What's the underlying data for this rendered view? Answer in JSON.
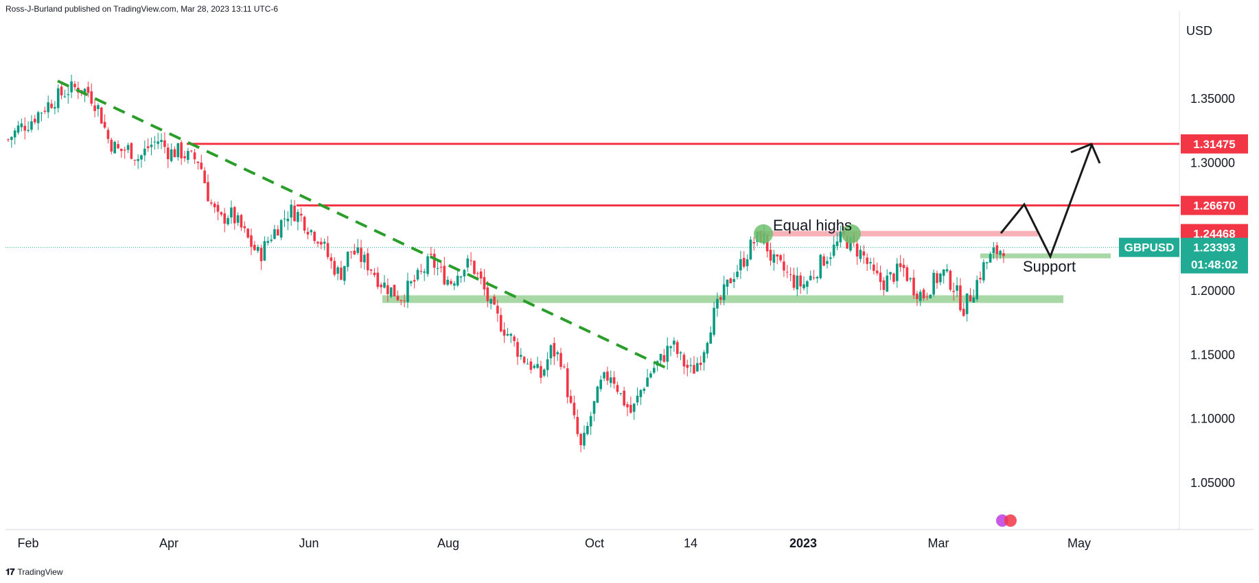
{
  "header": {
    "published": "Ross-J-Burland published on TradingView.com, Mar 28, 2023 13:11 UTC-6"
  },
  "footer": {
    "brand": "TradingView",
    "logo_glyph": "𝟏𝟕"
  },
  "colors": {
    "up": "#089981",
    "down": "#f23645",
    "resistance": "#f23645",
    "resistance_zone": "#f7a8ae",
    "support_zone": "#9fd49c",
    "trendline": "#2a9d2a",
    "arrow": "#1a1a1a",
    "current": "#22ab94"
  },
  "chart_data": {
    "type": "candlestick",
    "symbol": "GBPUSD",
    "currency": "USD",
    "ylim": [
      1.03,
      1.375
    ],
    "y_ticks": [
      "1.35000",
      "1.30000",
      "1.20000",
      "1.15000",
      "1.10000",
      "1.05000"
    ],
    "x_ticks": [
      "Feb",
      "Apr",
      "Jun",
      "Aug",
      "Oct",
      "14",
      "2023",
      "Mar",
      "May"
    ],
    "close_series": [
      1.318,
      1.327,
      1.331,
      1.339,
      1.346,
      1.352,
      1.357,
      1.359,
      1.355,
      1.342,
      1.317,
      1.309,
      1.311,
      1.303,
      1.313,
      1.318,
      1.308,
      1.309,
      1.304,
      1.302,
      1.271,
      1.254,
      1.261,
      1.251,
      1.238,
      1.227,
      1.242,
      1.252,
      1.263,
      1.259,
      1.248,
      1.241,
      1.223,
      1.212,
      1.232,
      1.226,
      1.219,
      1.207,
      1.201,
      1.195,
      1.204,
      1.212,
      1.224,
      1.214,
      1.207,
      1.217,
      1.222,
      1.207,
      1.187,
      1.174,
      1.163,
      1.149,
      1.142,
      1.133,
      1.154,
      1.147,
      1.107,
      1.075,
      1.104,
      1.128,
      1.136,
      1.117,
      1.104,
      1.124,
      1.138,
      1.147,
      1.159,
      1.145,
      1.136,
      1.151,
      1.178,
      1.195,
      1.212,
      1.222,
      1.237,
      1.244,
      1.223,
      1.217,
      1.208,
      1.204,
      1.212,
      1.224,
      1.232,
      1.242,
      1.235,
      1.228,
      1.212,
      1.206,
      1.212,
      1.218,
      1.203,
      1.196,
      1.207,
      1.214,
      1.204,
      1.186,
      1.201,
      1.219,
      1.229,
      1.234
    ],
    "levels": [
      {
        "label": "1.31475",
        "value": 1.31475
      },
      {
        "label": "1.26670",
        "value": 1.2667
      },
      {
        "label": "1.24468",
        "value": 1.24468
      }
    ],
    "current": {
      "symbol": "GBPUSD",
      "price": "1.23393",
      "countdown": "01:48:02",
      "value": 1.23393
    },
    "annotations": {
      "equal_highs": "Equal highs",
      "support": "Support"
    },
    "zones": {
      "resistance": [
        1.2425,
        1.2468
      ],
      "support_near": [
        1.2254,
        1.2292
      ],
      "support_long": [
        1.1905,
        1.1965
      ]
    }
  }
}
